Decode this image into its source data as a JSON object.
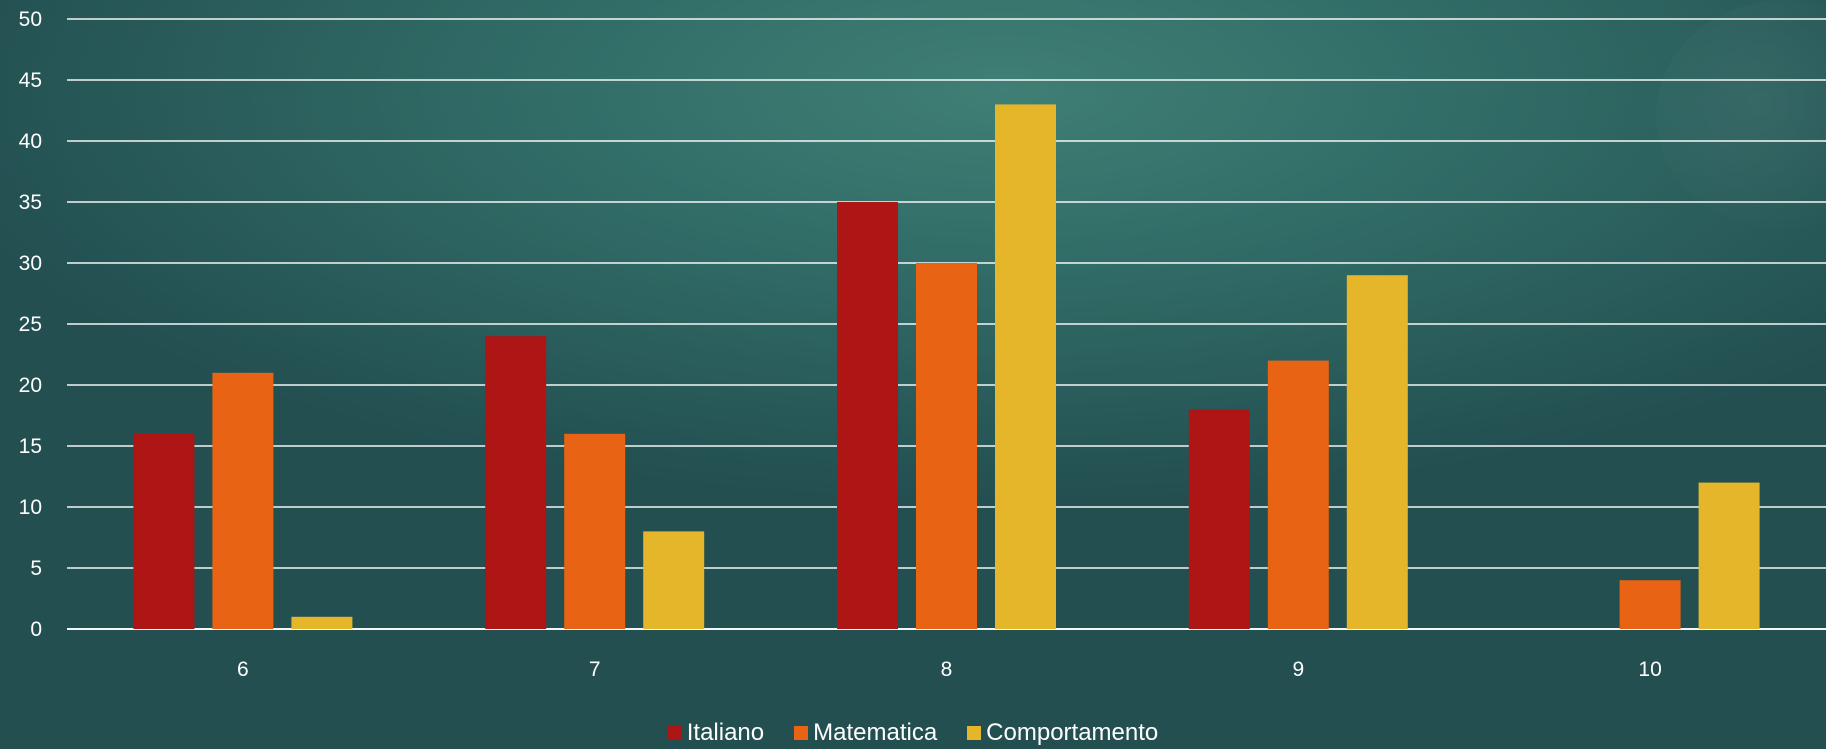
{
  "chart_data": {
    "type": "bar",
    "categories": [
      "6",
      "7",
      "8",
      "9",
      "10"
    ],
    "series": [
      {
        "name": "Italiano",
        "color": "#ae1515",
        "values": [
          16,
          24,
          35,
          18,
          0
        ]
      },
      {
        "name": "Matematica",
        "color": "#e86314",
        "values": [
          21,
          16,
          30,
          22,
          4
        ]
      },
      {
        "name": "Comportamento",
        "color": "#e5b52a",
        "values": [
          1,
          8,
          43,
          29,
          12
        ]
      }
    ],
    "ylim": [
      0,
      50
    ],
    "yticks": [
      0,
      5,
      10,
      15,
      20,
      25,
      30,
      35,
      40,
      45,
      50
    ],
    "grid": true,
    "legend_position": "bottom"
  }
}
